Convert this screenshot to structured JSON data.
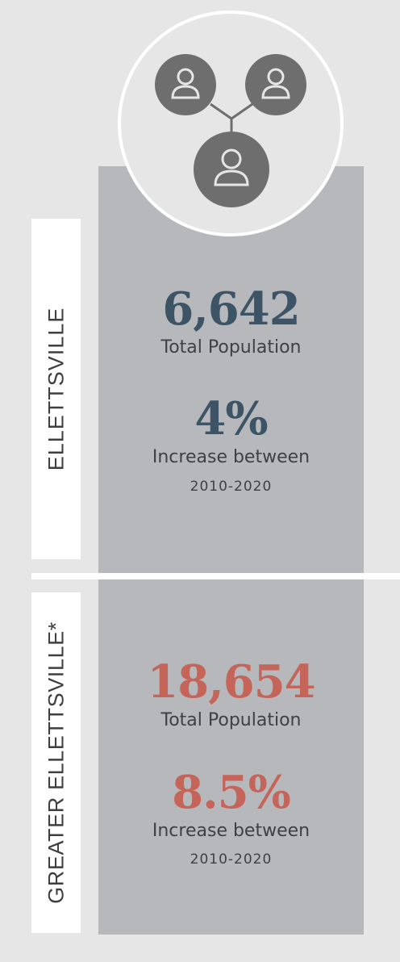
{
  "colors": {
    "background": "#e6e6e6",
    "panel": "#b6b8bc",
    "teal": "#3c5465",
    "coral": "#c5655a",
    "icon": "#6e6e6e"
  },
  "icon": "people-network-icon",
  "sections": [
    {
      "label": "ELLETTSVILLE",
      "population": "6,642",
      "population_caption": "Total Population",
      "growth": "4%",
      "growth_caption": "Increase between",
      "period": "2010-2020"
    },
    {
      "label": "GREATER ELLETTSVILLE*",
      "population": "18,654",
      "population_caption": "Total Population",
      "growth": "8.5%",
      "growth_caption": "Increase between",
      "period": "2010-2020"
    }
  ]
}
